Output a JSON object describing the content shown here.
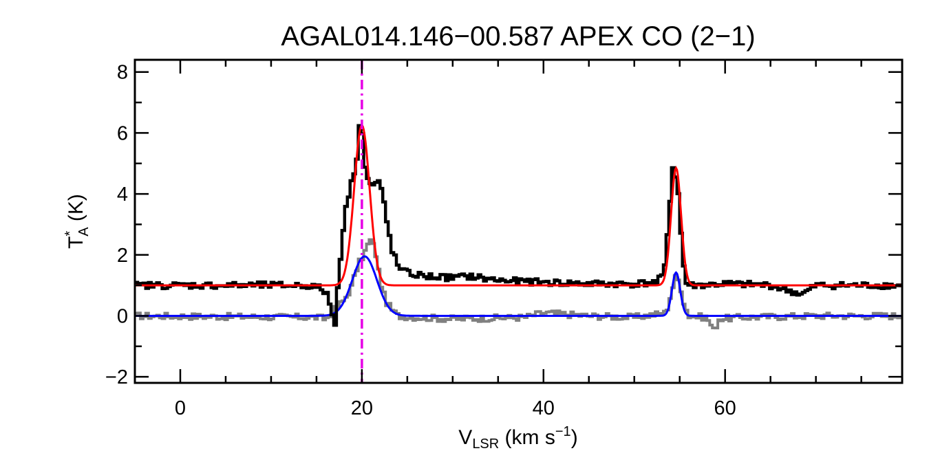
{
  "chart_data": {
    "type": "line",
    "title": "AGAL014.146−00.587  APEX CO (2−1)",
    "xlabel": {
      "main": "V",
      "sub": "LSR",
      "unit_pre": " (km s",
      "unit_sup": "−1",
      "unit_post": ")"
    },
    "ylabel": {
      "main": "T",
      "sup": "*",
      "sub": "A",
      "unit": " (K)"
    },
    "xlim": [
      -5,
      79.5
    ],
    "ylim": [
      -2.2,
      8.4
    ],
    "xticks": [
      0,
      20,
      40,
      60
    ],
    "xtick_labels": [
      "0",
      "20",
      "40",
      "60"
    ],
    "yticks": [
      -2,
      0,
      2,
      4,
      6,
      8
    ],
    "ytick_labels": [
      "−2",
      "0",
      "2",
      "4",
      "6",
      "8"
    ],
    "grid": false,
    "vline": {
      "x": 20.0,
      "color": "#e600e6",
      "style": "dash-dot"
    },
    "colors": {
      "spectrum_12co": "#000000",
      "spectrum_13co": "#808080",
      "fit_12co": "#ff0000",
      "fit_13co": "#0000ff"
    },
    "series": [
      {
        "key": "spectrum_12co",
        "style": "step",
        "color": "#000000",
        "x": [
          -5,
          14,
          15.5,
          16.2,
          16.7,
          17.0,
          17.5,
          18.0,
          18.4,
          18.8,
          19.2,
          19.6,
          19.8,
          20.0,
          20.2,
          20.5,
          20.9,
          21.3,
          21.8,
          22.3,
          22.8,
          23.3,
          24.0,
          25.0,
          27.0,
          30.0,
          32.0,
          34.0,
          36.0,
          40.0,
          45.0,
          50.0,
          52.5,
          53.3,
          53.8,
          54.2,
          54.5,
          54.8,
          55.2,
          55.6,
          56.2,
          57.0,
          60.0,
          65.0,
          68.5,
          70.0,
          75.0,
          79.5
        ],
        "y": [
          1.0,
          1.0,
          0.9,
          0.7,
          0.1,
          -0.4,
          1.5,
          3.0,
          3.8,
          4.3,
          4.8,
          5.5,
          6.6,
          6.2,
          5.2,
          4.6,
          4.3,
          4.3,
          4.4,
          4.0,
          3.0,
          2.2,
          1.6,
          1.4,
          1.3,
          1.25,
          1.3,
          1.2,
          1.15,
          1.1,
          1.05,
          1.05,
          1.1,
          1.4,
          3.2,
          4.9,
          4.7,
          4.2,
          2.5,
          1.1,
          1.0,
          1.0,
          1.05,
          1.0,
          0.7,
          1.0,
          1.0,
          1.0
        ]
      },
      {
        "key": "spectrum_13co",
        "style": "step",
        "color": "#808080",
        "x": [
          -5,
          15.0,
          16.0,
          16.5,
          17.0,
          18.0,
          18.8,
          19.4,
          19.8,
          20.2,
          20.6,
          21.0,
          21.5,
          22.0,
          22.6,
          23.3,
          24.0,
          26.0,
          30.0,
          38.0,
          40.0,
          45.0,
          50.0,
          53.5,
          54.2,
          54.6,
          55.0,
          55.5,
          56.0,
          58.0,
          58.8,
          59.3,
          62.0,
          70.0,
          79.5
        ],
        "y": [
          0.0,
          -0.05,
          -0.1,
          0.0,
          0.2,
          0.5,
          0.9,
          1.5,
          1.8,
          2.0,
          2.3,
          2.5,
          2.1,
          1.2,
          0.5,
          0.2,
          0.0,
          -0.05,
          -0.1,
          -0.05,
          0.1,
          0.0,
          -0.05,
          0.1,
          0.9,
          1.3,
          1.1,
          0.4,
          0.0,
          -0.05,
          -0.5,
          -0.1,
          -0.05,
          0.0,
          0.0
        ]
      },
      {
        "key": "fit_12co",
        "style": "gauss",
        "color": "#ff0000",
        "baseline": 1.0,
        "components": [
          {
            "amp": 5.25,
            "center": 20.0,
            "sigma": 0.85
          },
          {
            "amp": 3.85,
            "center": 54.6,
            "sigma": 0.55
          }
        ]
      },
      {
        "key": "fit_13co",
        "style": "gauss",
        "color": "#0000ff",
        "baseline": 0.0,
        "components": [
          {
            "amp": 1.95,
            "center": 20.3,
            "sigma": 1.35
          },
          {
            "amp": 1.42,
            "center": 54.6,
            "sigma": 0.45
          }
        ]
      }
    ]
  }
}
